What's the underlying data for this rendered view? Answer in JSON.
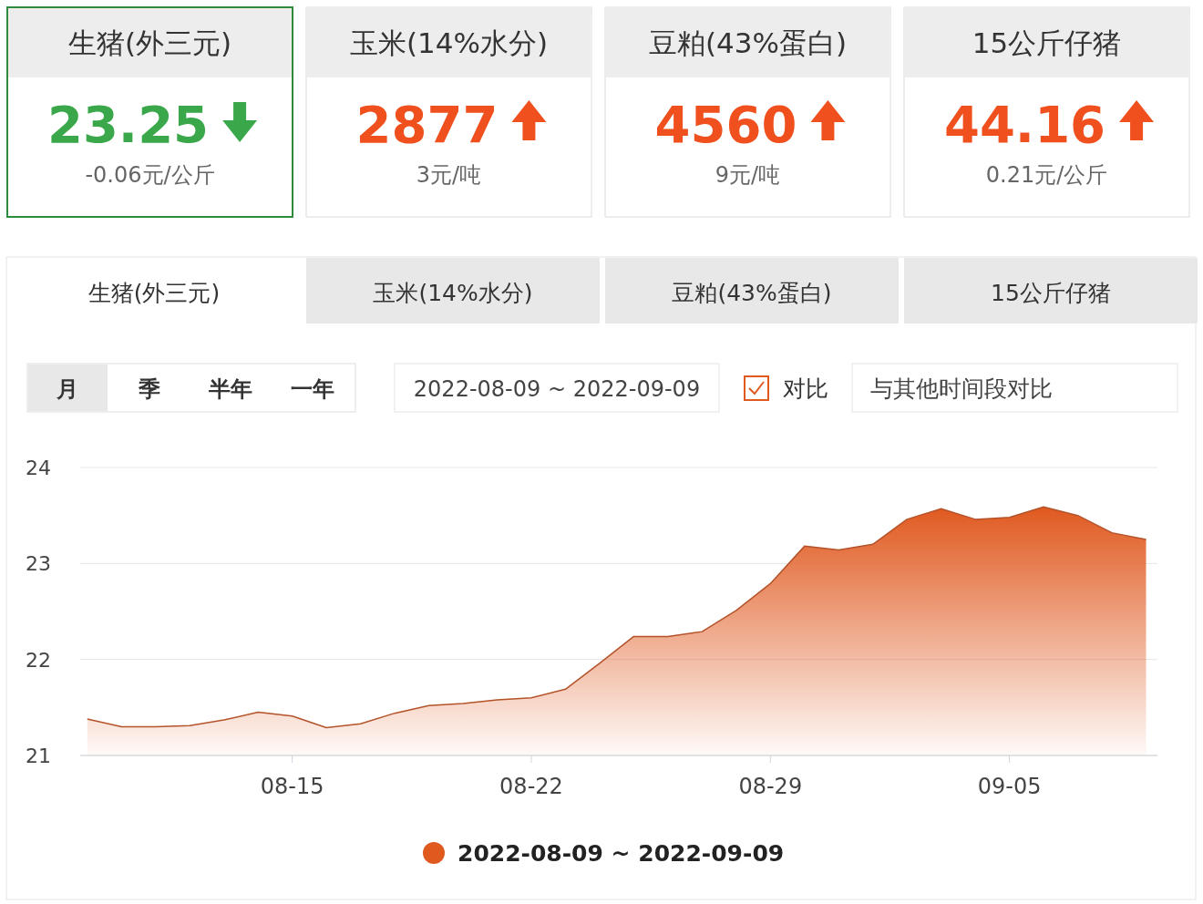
{
  "chart_data": [
    {
      "type": "other",
      "title": "生猪(外三元)",
      "annotations": [
        "23.25",
        "-0.06元/公斤"
      ],
      "color": "#3aa84a"
    },
    {
      "type": "other",
      "title": "玉米(14%水分)",
      "annotations": [
        "2877",
        "3元/吨"
      ],
      "color": "#f0501e"
    },
    {
      "type": "other",
      "title": "豆粕(43%蛋白)",
      "annotations": [
        "4560",
        "9元/吨"
      ],
      "color": "#f0501e"
    },
    {
      "type": "other",
      "title": "15公斤仔猪",
      "annotations": [
        "44.16",
        "0.21元/公斤"
      ],
      "color": "#f0501e"
    },
    {
      "type": "other",
      "annotations": [
        "生猪(外三元)",
        "玉米(14%水分)",
        "豆粕(43%蛋白)",
        "15公斤仔猪",
        "月",
        "季",
        "半年",
        "一年",
        "2022-08-09 ~ 2022-09-09",
        "对比",
        "与其他时间段对比"
      ]
    },
    {
      "type": "area",
      "x": [
        "2022-08-09",
        "2022-08-10",
        "2022-08-11",
        "2022-08-12",
        "2022-08-13",
        "2022-08-14",
        "2022-08-15",
        "2022-08-16",
        "2022-08-17",
        "2022-08-18",
        "2022-08-19",
        "2022-08-20",
        "2022-08-21",
        "2022-08-22",
        "2022-08-23",
        "2022-08-24",
        "2022-08-25",
        "2022-08-26",
        "2022-08-27",
        "2022-08-28",
        "2022-08-29",
        "2022-08-30",
        "2022-08-31",
        "2022-09-01",
        "2022-09-02",
        "2022-09-03",
        "2022-09-04",
        "2022-09-05",
        "2022-09-06",
        "2022-09-07",
        "2022-09-08",
        "2022-09-09"
      ],
      "series": [
        {
          "name": "2022-08-09 ~ 2022-09-09",
          "color": "#e0591f",
          "values": [
            21.38,
            21.3,
            21.3,
            21.31,
            21.37,
            21.45,
            21.41,
            21.29,
            21.33,
            21.44,
            21.52,
            21.54,
            21.58,
            21.6,
            21.69,
            21.96,
            22.24,
            22.24,
            22.29,
            22.51,
            22.79,
            23.18,
            23.14,
            23.2,
            23.46,
            23.57,
            23.46,
            23.48,
            23.59,
            23.5,
            23.32,
            23.25
          ]
        }
      ],
      "xlim": [
        "2022-08-08T19:00",
        "2022-09-09T08:00"
      ],
      "xticks": [
        {
          "value": "2022-08-15",
          "label": "08-15"
        },
        {
          "value": "2022-08-22",
          "label": "08-22"
        },
        {
          "value": "2022-08-29",
          "label": "08-29"
        },
        {
          "value": "2022-09-05",
          "label": "09-05"
        }
      ],
      "ylim": [
        21,
        24
      ],
      "yticks": [
        21,
        22,
        23,
        24
      ],
      "grid": "y",
      "legend": "bottom"
    }
  ]
}
